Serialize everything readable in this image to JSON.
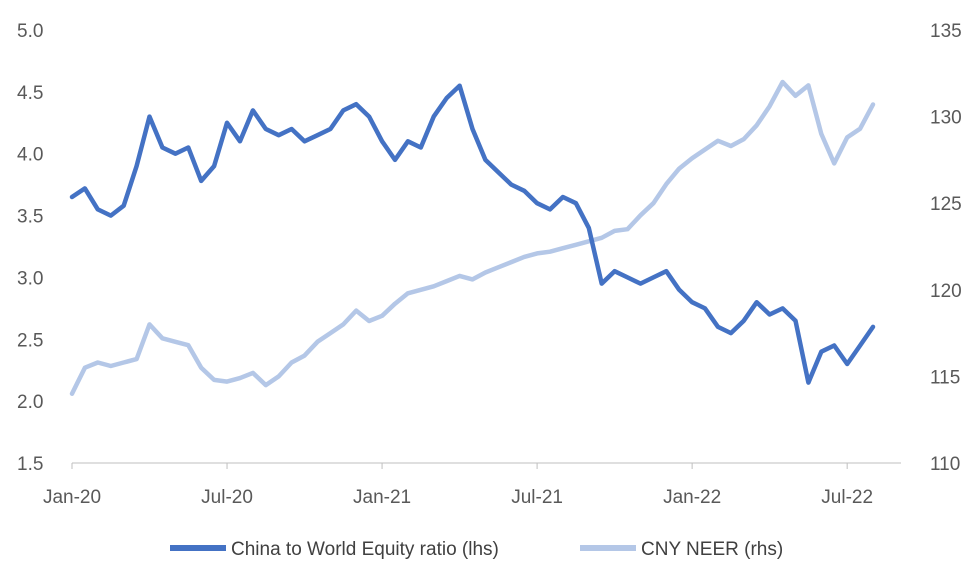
{
  "chart_data": {
    "type": "line",
    "title": "",
    "x_labels": [
      "Jan-20",
      "Jul-20",
      "Jan-21",
      "Jul-21",
      "Jan-22",
      "Jul-22"
    ],
    "x_range": [
      0,
      31
    ],
    "left_axis": {
      "ylim": [
        1.5,
        5.0
      ],
      "ticks": [
        "5.0",
        "4.5",
        "4.0",
        "3.5",
        "3.0",
        "2.5",
        "2.0",
        "1.5"
      ]
    },
    "right_axis": {
      "ylim": [
        110,
        135
      ],
      "ticks": [
        "135",
        "130",
        "125",
        "120",
        "115",
        "110"
      ]
    },
    "series": [
      {
        "name": "China to World Equity ratio (lhs)",
        "axis": "left",
        "color": "#4472c4",
        "x": [
          0,
          0.5,
          1,
          1.5,
          2,
          2.5,
          3,
          3.5,
          4,
          4.5,
          5,
          5.5,
          6,
          6.5,
          7,
          7.5,
          8,
          8.5,
          9,
          9.5,
          10,
          10.5,
          11,
          11.5,
          12,
          12.5,
          13,
          13.5,
          14,
          14.5,
          15,
          15.5,
          16,
          16.5,
          17,
          17.5,
          18,
          18.5,
          19,
          19.5,
          20,
          20.5,
          21,
          21.5,
          22,
          22.5,
          23,
          23.5,
          24,
          24.5,
          25,
          25.5,
          26,
          26.5,
          27,
          27.5,
          28,
          28.5,
          29,
          29.5,
          30,
          30.5,
          31
        ],
        "values": [
          3.65,
          3.72,
          3.55,
          3.5,
          3.58,
          3.9,
          4.3,
          4.05,
          4.0,
          4.05,
          3.78,
          3.9,
          4.25,
          4.1,
          4.35,
          4.2,
          4.15,
          4.2,
          4.1,
          4.15,
          4.2,
          4.35,
          4.4,
          4.3,
          4.1,
          3.95,
          4.1,
          4.05,
          4.3,
          4.45,
          4.55,
          4.2,
          3.95,
          3.85,
          3.75,
          3.7,
          3.6,
          3.55,
          3.65,
          3.6,
          3.4,
          2.95,
          3.05,
          3.0,
          2.95,
          3.0,
          3.05,
          2.9,
          2.8,
          2.75,
          2.6,
          2.55,
          2.65,
          2.8,
          2.7,
          2.75,
          2.65,
          2.15,
          2.4,
          2.45,
          2.3,
          2.45,
          2.6
        ]
      },
      {
        "name": "CNY NEER (rhs)",
        "axis": "right",
        "color": "#b4c7e7",
        "x": [
          0,
          0.5,
          1,
          1.5,
          2,
          2.5,
          3,
          3.5,
          4,
          4.5,
          5,
          5.5,
          6,
          6.5,
          7,
          7.5,
          8,
          8.5,
          9,
          9.5,
          10,
          10.5,
          11,
          11.5,
          12,
          12.5,
          13,
          13.5,
          14,
          14.5,
          15,
          15.5,
          16,
          16.5,
          17,
          17.5,
          18,
          18.5,
          19,
          19.5,
          20,
          20.5,
          21,
          21.5,
          22,
          22.5,
          23,
          23.5,
          24,
          24.5,
          25,
          25.5,
          26,
          26.5,
          27,
          27.5,
          28,
          28.5,
          29,
          29.5,
          30,
          30.5,
          31
        ],
        "values": [
          114.0,
          115.5,
          115.8,
          115.6,
          115.8,
          116.0,
          118.0,
          117.2,
          117.0,
          116.8,
          115.5,
          114.8,
          114.7,
          114.9,
          115.2,
          114.5,
          115.0,
          115.8,
          116.2,
          117.0,
          117.5,
          118.0,
          118.8,
          118.2,
          118.5,
          119.2,
          119.8,
          120.0,
          120.2,
          120.5,
          120.8,
          120.6,
          121.0,
          121.3,
          121.6,
          121.9,
          122.1,
          122.2,
          122.4,
          122.6,
          122.8,
          123.0,
          123.4,
          123.5,
          124.3,
          125.0,
          126.1,
          127.0,
          127.6,
          128.1,
          128.6,
          128.3,
          128.7,
          129.5,
          130.6,
          132.0,
          131.2,
          131.8,
          129.0,
          127.3,
          128.8,
          129.3,
          130.7
        ]
      }
    ],
    "legend": {
      "position": "bottom",
      "entries": [
        "China to World Equity ratio (lhs)",
        "CNY NEER (rhs)"
      ]
    }
  }
}
